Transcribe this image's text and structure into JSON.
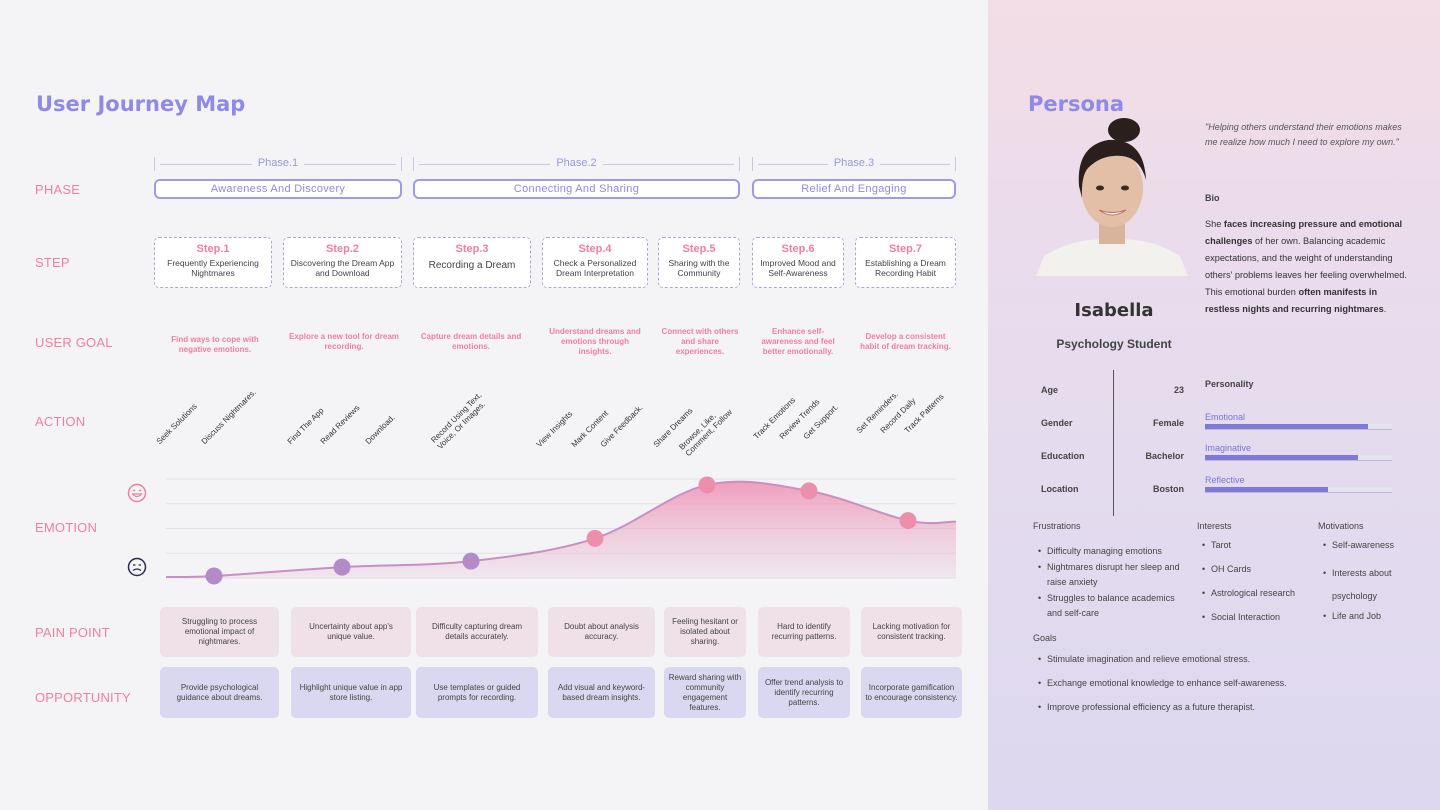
{
  "journey": {
    "title": "User Journey Map",
    "row_labels": {
      "phase": "PHASE",
      "step": "STEP",
      "goal": "USER GOAL",
      "action": "ACTION",
      "emotion": "EMOTION",
      "pain": "PAIN POINT",
      "opportunity": "OPPORTUNITY"
    },
    "phases": [
      {
        "label": "Phase.1",
        "name": "Awareness And Discovery"
      },
      {
        "label": "Phase.2",
        "name": "Connecting And Sharing"
      },
      {
        "label": "Phase.3",
        "name": "Relief And Engaging"
      }
    ],
    "steps": [
      {
        "num": "Step.1",
        "desc": "Frequently Experiencing Nightmares"
      },
      {
        "num": "Step.2",
        "desc": "Discovering the Dream App and Download"
      },
      {
        "num": "Step.3",
        "desc": "Recording a Dream"
      },
      {
        "num": "Step.4",
        "desc": "Check a Personalized Dream Interpretation"
      },
      {
        "num": "Step.5",
        "desc": "Sharing with the Community"
      },
      {
        "num": "Step.6",
        "desc": "Improved Mood and Self-Awareness"
      },
      {
        "num": "Step.7",
        "desc": "Establishing a Dream Recording Habit"
      }
    ],
    "goals": [
      "Find ways to cope with negative emotions.",
      "Explore a new tool for dream recording.",
      "Capture dream details and emotions.",
      "Understand dreams and emotions through insights.",
      "Connect with others and share experiences.",
      "Enhance self-awareness and feel better emotionally.",
      "Develop a consistent habit of dream tracking."
    ],
    "actions": [
      "Seek Solutions",
      "Discuss Nightmares.",
      "Find The App",
      "Read Reviews",
      "Download.",
      "Record Using Text, Voice, Or Images.",
      "View Insights",
      "Mark Content",
      "Give Feedback.",
      "Share Dreams",
      "Browse, Like, Comment, Follow",
      "Track Emotions",
      "Review Trends",
      "Get Support.",
      "Set Reminders.",
      "Record Daily",
      "Track Patterns"
    ],
    "emotion_icons": {
      "high": "happy-face-icon",
      "low": "sad-face-icon"
    },
    "emotion_levels": [
      0.02,
      0.11,
      0.17,
      0.4,
      0.94,
      0.88,
      0.58
    ],
    "pain_points": [
      "Struggling to process emotional impact of nightmares.",
      "Uncertainty about app's unique value.",
      "Difficulty capturing dream details accurately.",
      "Doubt about analysis accuracy.",
      "Feeling hesitant or isolated about sharing.",
      "Hard to identify recurring patterns.",
      "Lacking motivation for consistent tracking."
    ],
    "opportunities": [
      "Provide psychological guidance about dreams.",
      "Highlight unique value in app store listing.",
      "Use templates or guided prompts for recording.",
      "Add visual and keyword-based dream insights.",
      "Reward sharing with community engagement features.",
      "Offer trend analysis to identify recurring patterns.",
      "Incorporate gamification to encourage consistency."
    ]
  },
  "persona": {
    "title": "Persona",
    "quote": "\"Helping others understand their emotions makes me realize how much I need to explore my own.\"",
    "bio_heading": "Bio",
    "bio": [
      {
        "t": "She ",
        "b": false
      },
      {
        "t": "faces increasing pressure and emotional challenges",
        "b": true
      },
      {
        "t": " of her own. Balancing academic expectations, and the weight of understanding others' problems leaves her feeling overwhelmed. This emotional burden ",
        "b": false
      },
      {
        "t": "often manifests in restless nights and recurring nightmares",
        "b": true
      },
      {
        "t": ".",
        "b": false
      }
    ],
    "name": "Isabella",
    "role": "Psychology Student",
    "facts": [
      {
        "k": "Age",
        "v": "23"
      },
      {
        "k": "Gender",
        "v": "Female"
      },
      {
        "k": "Education",
        "v": "Bachelor"
      },
      {
        "k": "Location",
        "v": "Boston"
      }
    ],
    "personality_title": "Personality",
    "personality": [
      {
        "name": "Emotional",
        "level": 0.87
      },
      {
        "name": "Imaginative",
        "level": 0.82
      },
      {
        "name": "Reflective",
        "level": 0.66
      }
    ],
    "frustrations_title": "Frustrations",
    "frustrations": [
      "Difficulty managing emotions",
      "Nightmares disrupt her sleep and raise anxiety",
      "Struggles to balance academics and self-care"
    ],
    "interests_title": "Interests",
    "interests": [
      "Tarot",
      "OH Cards",
      "Astrological research",
      "Social Interaction"
    ],
    "motivations_title": "Motivations",
    "motivations": [
      "Self-awareness",
      "Interests about psychology",
      "Life and Job"
    ],
    "goals_title": "Goals",
    "goals": [
      "Stimulate imagination and relieve emotional stress.",
      "Exchange emotional knowledge to enhance self-awareness.",
      "Improve professional efficiency as a future therapist."
    ],
    "colors": {
      "accent": "#8e8ae6",
      "pink": "#f07ea2",
      "bar": "#8079d9"
    }
  }
}
